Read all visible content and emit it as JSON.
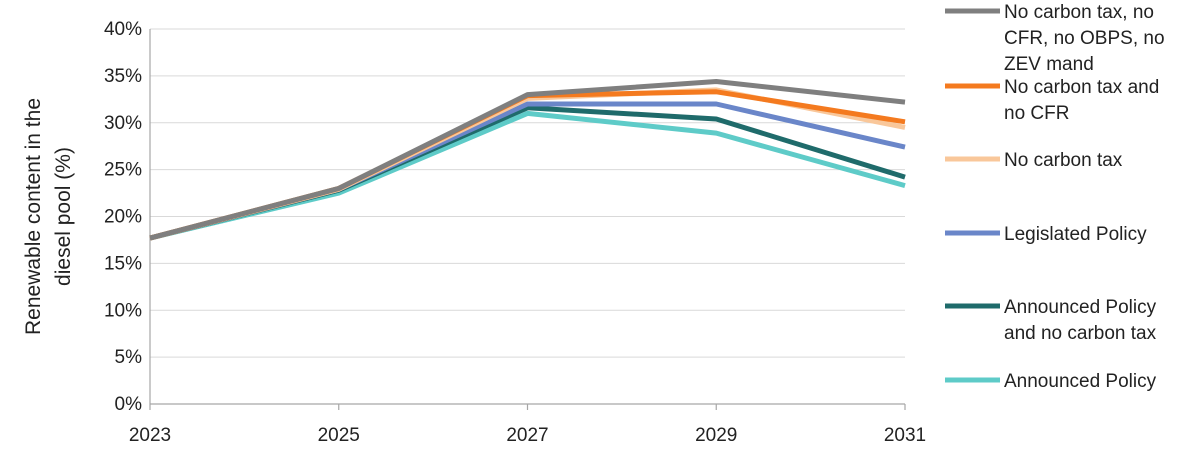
{
  "chart_data": {
    "type": "line",
    "title": "",
    "xlabel": "",
    "ylabel_lines": [
      "Renewable content in the",
      "diesel pool (%)"
    ],
    "x": [
      2023,
      2025,
      2027,
      2029,
      2031
    ],
    "x_tick_labels": [
      "2023",
      "2025",
      "2027",
      "2029",
      "2031"
    ],
    "ylim": [
      0,
      40
    ],
    "y_ticks": [
      0,
      5,
      10,
      15,
      20,
      25,
      30,
      35,
      40
    ],
    "y_tick_labels": [
      "0%",
      "5%",
      "10%",
      "15%",
      "20%",
      "25%",
      "30%",
      "35%",
      "40%"
    ],
    "grid": "horizontal",
    "legend_position": "right",
    "series": [
      {
        "name": "No carbon tax, no CFR, no OBPS, no ZEV mand",
        "legend_lines": [
          "No carbon tax, no",
          "CFR, no OBPS, no",
          "ZEV mand"
        ],
        "color": "#7f7f7f",
        "values": [
          17.7,
          23.0,
          33.0,
          34.4,
          32.2
        ]
      },
      {
        "name": "No carbon tax and no CFR",
        "legend_lines": [
          "No carbon tax and",
          "no CFR"
        ],
        "color": "#f47a1f",
        "values": [
          17.7,
          23.0,
          32.9,
          33.3,
          30.1
        ]
      },
      {
        "name": "No carbon tax",
        "legend_lines": [
          "No carbon tax"
        ],
        "color": "#f9c79a",
        "values": [
          17.7,
          22.9,
          32.6,
          33.5,
          29.5
        ]
      },
      {
        "name": "Legislated Policy",
        "legend_lines": [
          "Legislated Policy"
        ],
        "color": "#6a86c9",
        "values": [
          17.7,
          22.9,
          32.0,
          32.0,
          27.4
        ]
      },
      {
        "name": "Announced Policy and no carbon tax",
        "legend_lines": [
          "Announced Policy",
          "and no carbon tax"
        ],
        "color": "#1f6b6b",
        "values": [
          17.7,
          22.8,
          31.6,
          30.4,
          24.2
        ]
      },
      {
        "name": "Announced Policy",
        "legend_lines": [
          "Announced Policy"
        ],
        "color": "#5ecbc8",
        "values": [
          17.7,
          22.5,
          31.0,
          28.9,
          23.3
        ]
      }
    ]
  }
}
